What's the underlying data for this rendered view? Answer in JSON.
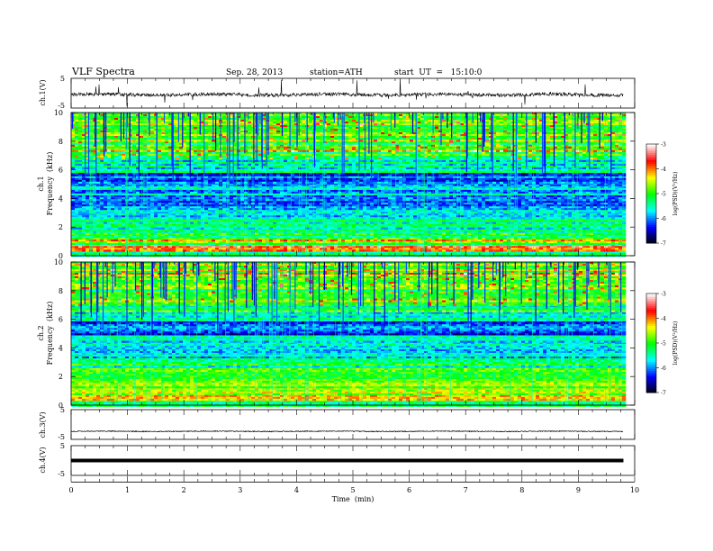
{
  "header": {
    "title": "VLF Spectra",
    "date": "Sep. 28, 2013",
    "station": "station=ATH",
    "start": "start  UT  =   15:10:0"
  },
  "chart_data": [
    {
      "type": "line",
      "panel": "ch1-waveform",
      "ylabel": "ch.1(V)",
      "ylim": [
        -5,
        5
      ],
      "yticks": [
        "5",
        "-5"
      ],
      "xlim": [
        0,
        10
      ],
      "data_end_min": 9.8,
      "baseline_v": -0.5,
      "noise_amplitude_v": 0.6,
      "burst_amplitude_v": 4.5,
      "color": "#000000"
    },
    {
      "type": "heatmap",
      "panel": "ch1-spectrogram",
      "ylabel_line1": "ch.1",
      "ylabel_line2": "Frequency  (kHz)",
      "ylim": [
        0,
        10
      ],
      "yticks": [
        "0",
        "2",
        "4",
        "6",
        "8",
        "10"
      ],
      "xlim": [
        0,
        10
      ],
      "data_end_min": 9.8,
      "colorbar": {
        "label": "log(PSD)(V²/Hz)",
        "range": [
          -7,
          -3
        ],
        "ticks": [
          "-3",
          "-4",
          "-5",
          "-6",
          "-7"
        ],
        "colors": [
          "#000000",
          "#0000ff",
          "#00ffff",
          "#00ff00",
          "#ffff00",
          "#ff0000",
          "#ffffff"
        ]
      },
      "bands_khz": [
        {
          "from": 0,
          "to": 0.3,
          "level": 0.45
        },
        {
          "from": 0.3,
          "to": 0.8,
          "level": 0.7
        },
        {
          "from": 0.8,
          "to": 1.5,
          "level": 0.48
        },
        {
          "from": 1.5,
          "to": 2.6,
          "level": 0.4
        },
        {
          "from": 2.6,
          "to": 4.2,
          "level": 0.27
        },
        {
          "from": 4.2,
          "to": 5.1,
          "level": 0.3
        },
        {
          "from": 5.1,
          "to": 5.8,
          "level": 0.22
        },
        {
          "from": 5.8,
          "to": 6.8,
          "level": 0.37
        },
        {
          "from": 6.8,
          "to": 8.0,
          "level": 0.48
        },
        {
          "from": 8.0,
          "to": 10.0,
          "level": 0.56
        }
      ]
    },
    {
      "type": "heatmap",
      "panel": "ch2-spectrogram",
      "ylabel_line1": "ch.2",
      "ylabel_line2": "Frequency  (kHz)",
      "ylim": [
        0,
        10
      ],
      "yticks": [
        "0",
        "2",
        "4",
        "6",
        "8",
        "10"
      ],
      "xlim": [
        0,
        10
      ],
      "data_end_min": 9.8,
      "colorbar": {
        "label": "log(PSD)(V²/Hz)",
        "range": [
          -7,
          -3
        ],
        "ticks": [
          "-3",
          "-4",
          "-5",
          "-6",
          "-7"
        ],
        "colors": [
          "#000000",
          "#0000ff",
          "#00ffff",
          "#00ff00",
          "#ffff00",
          "#ff0000",
          "#ffffff"
        ]
      },
      "bands_khz": [
        {
          "from": 0,
          "to": 0.4,
          "level": 0.45
        },
        {
          "from": 0.4,
          "to": 1.2,
          "level": 0.62
        },
        {
          "from": 1.2,
          "to": 2.7,
          "level": 0.56
        },
        {
          "from": 2.7,
          "to": 4.4,
          "level": 0.35
        },
        {
          "from": 4.4,
          "to": 5.0,
          "level": 0.38
        },
        {
          "from": 5.0,
          "to": 5.9,
          "level": 0.22
        },
        {
          "from": 5.9,
          "to": 7.0,
          "level": 0.38
        },
        {
          "from": 7.0,
          "to": 8.2,
          "level": 0.5
        },
        {
          "from": 8.2,
          "to": 10.0,
          "level": 0.58
        }
      ]
    },
    {
      "type": "line",
      "panel": "ch3-waveform",
      "ylabel": "ch.3(V)",
      "ylim": [
        -5,
        5
      ],
      "yticks": [
        "5",
        "-5"
      ],
      "xlim": [
        0,
        10
      ],
      "data_end_min": 9.8,
      "baseline_v": -2.3,
      "noise_amplitude_v": 0.15,
      "color": "#000000"
    },
    {
      "type": "line",
      "panel": "ch4-waveform",
      "ylabel": "ch.4(V)",
      "ylim": [
        -5,
        5
      ],
      "yticks": [
        "5",
        "-5"
      ],
      "xlim": [
        0,
        10
      ],
      "data_end_min": 9.8,
      "baseline_v": 0,
      "noise_amplitude_v": 0.4,
      "color": "#000000"
    }
  ],
  "x_axis": {
    "label": "Time  (min)",
    "ticks": [
      "0",
      "1",
      "2",
      "3",
      "4",
      "5",
      "6",
      "7",
      "8",
      "9",
      "10"
    ]
  }
}
